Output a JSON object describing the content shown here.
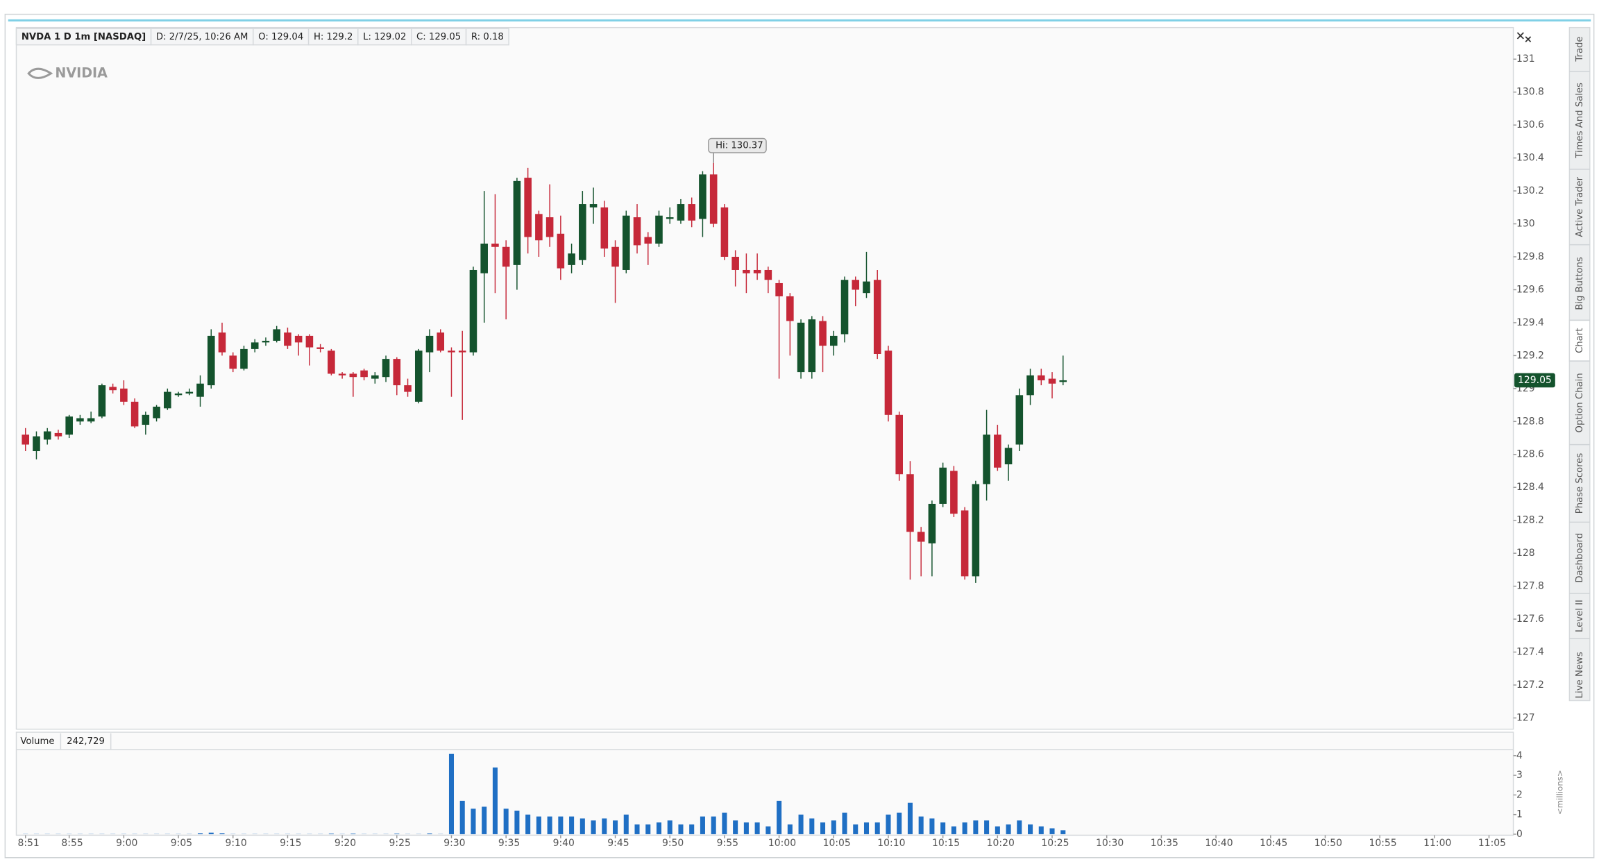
{
  "header": {
    "fields": [
      "NVDA 1 D 1m [NASDAQ]",
      "D: 2/7/25, 10:26 AM",
      "O: 129.04",
      "H: 129.2",
      "L: 129.02",
      "C: 129.05",
      "R: 0.18"
    ]
  },
  "watermark": "NVIDIA",
  "sidebar": {
    "tabs": [
      "Trade",
      "Times And Sales",
      "Active Trader",
      "Big Buttons",
      "Chart",
      "Option Chain",
      "Phase Scores",
      "Dashboard",
      "Level II",
      "Live News"
    ]
  },
  "chart_data": {
    "type": "candlestick",
    "categories": [
      "8:51",
      null,
      null,
      null,
      "8:55",
      null,
      null,
      null,
      null,
      "9:00",
      null,
      null,
      null,
      null,
      "9:05",
      null,
      null,
      null,
      null,
      "9:10",
      null,
      null,
      null,
      null,
      "9:15",
      null,
      null,
      null,
      null,
      "9:20",
      null,
      null,
      null,
      null,
      "9:25",
      null,
      null,
      null,
      null,
      "9:30",
      null,
      null,
      null,
      null,
      "9:35",
      null,
      null,
      null,
      null,
      "9:40",
      null,
      null,
      null,
      null,
      "9:45",
      null,
      null,
      null,
      null,
      "9:50",
      null,
      null,
      null,
      null,
      "9:55",
      null,
      null,
      null,
      null,
      "10:00",
      null,
      null,
      null,
      null,
      "10:05",
      null,
      null,
      null,
      null,
      "10:10",
      null,
      null,
      null,
      null,
      "10:15",
      null,
      null,
      null,
      null,
      "10:20",
      null,
      null,
      null,
      null,
      "10:25",
      null,
      null,
      null,
      null,
      "10:30",
      null,
      null,
      null,
      null,
      "10:35",
      null,
      null,
      null,
      null,
      "10:40",
      null,
      null,
      null,
      null,
      "10:45",
      null,
      null,
      null,
      null,
      "10:50",
      null,
      null,
      null,
      null,
      "10:55",
      null,
      null,
      null,
      null,
      "11:00",
      null,
      null,
      null,
      null,
      "11:05"
    ],
    "open": [
      128.72,
      128.62,
      128.69,
      128.73,
      128.72,
      128.8,
      128.8,
      128.83,
      129.01,
      129.0,
      128.92,
      128.78,
      128.82,
      128.88,
      128.96,
      128.97,
      128.95,
      129.02,
      129.34,
      129.2,
      129.12,
      129.24,
      129.28,
      129.29,
      129.34,
      129.32,
      129.32,
      129.25,
      129.23,
      129.09,
      129.09,
      129.11,
      129.06,
      129.07,
      129.18,
      129.02,
      128.92,
      129.22,
      129.34,
      129.23,
      129.23,
      129.22,
      129.7,
      129.88,
      129.86,
      129.75,
      130.28,
      130.06,
      130.04,
      129.94,
      129.75,
      129.78,
      130.1,
      130.1,
      129.86,
      129.72,
      130.04,
      129.92,
      129.88,
      130.03,
      130.02,
      130.12,
      130.03,
      130.3,
      130.1,
      129.8,
      129.72,
      129.72,
      129.72,
      129.64,
      129.56,
      129.1,
      129.1,
      129.41,
      129.26,
      129.33,
      129.66,
      129.58,
      129.66,
      129.23,
      128.84,
      128.48,
      128.13,
      128.06,
      128.3,
      128.5,
      128.26,
      127.86,
      128.42,
      128.72,
      128.54,
      128.66,
      128.96,
      129.08,
      129.06,
      129.04,
      null,
      null,
      null,
      null,
      null,
      null,
      null,
      null,
      null,
      null,
      null,
      null,
      null,
      null,
      null,
      null,
      null,
      null,
      null,
      null,
      null,
      null,
      null,
      null,
      null,
      null,
      null,
      null,
      null,
      null,
      null,
      null,
      null,
      null,
      null,
      null,
      null,
      null,
      null
    ],
    "high": [
      128.76,
      128.74,
      128.76,
      128.75,
      128.84,
      128.84,
      128.86,
      129.03,
      129.03,
      129.05,
      128.94,
      128.86,
      128.9,
      129.0,
      128.98,
      129.0,
      129.08,
      129.36,
      129.4,
      129.22,
      129.26,
      129.3,
      129.31,
      129.38,
      129.37,
      129.33,
      129.33,
      129.27,
      129.24,
      129.1,
      129.1,
      129.12,
      129.1,
      129.2,
      129.19,
      129.06,
      129.24,
      129.36,
      129.36,
      129.25,
      129.35,
      129.74,
      130.2,
      130.18,
      129.9,
      130.28,
      130.34,
      130.08,
      130.24,
      130.05,
      129.88,
      130.2,
      130.22,
      130.14,
      129.9,
      130.08,
      130.12,
      129.95,
      130.08,
      130.1,
      130.15,
      130.16,
      130.32,
      130.37,
      130.12,
      129.84,
      129.82,
      129.82,
      129.74,
      129.66,
      129.58,
      129.42,
      129.44,
      129.44,
      129.35,
      129.68,
      129.68,
      129.83,
      129.72,
      129.26,
      128.86,
      128.56,
      128.16,
      128.32,
      128.55,
      128.53,
      128.28,
      128.44,
      128.87,
      128.78,
      128.66,
      129.0,
      129.12,
      129.12,
      129.1,
      129.2,
      null,
      null,
      null,
      null,
      null,
      null,
      null,
      null,
      null,
      null,
      null,
      null,
      null,
      null,
      null,
      null,
      null,
      null,
      null,
      null,
      null,
      null,
      null,
      null,
      null,
      null,
      null,
      null,
      null,
      null,
      null,
      null,
      null,
      null,
      null,
      null,
      null,
      null,
      null
    ],
    "low": [
      128.62,
      128.57,
      128.66,
      128.69,
      128.7,
      128.78,
      128.79,
      128.82,
      128.97,
      128.9,
      128.76,
      128.72,
      128.8,
      128.87,
      128.95,
      128.96,
      128.89,
      129.0,
      129.2,
      129.1,
      129.11,
      129.22,
      129.26,
      129.28,
      129.24,
      129.2,
      129.14,
      129.22,
      129.08,
      129.06,
      128.95,
      129.05,
      129.03,
      129.04,
      128.96,
      128.95,
      128.91,
      129.1,
      129.22,
      128.95,
      128.81,
      129.2,
      129.4,
      129.58,
      129.42,
      129.6,
      129.82,
      129.8,
      129.86,
      129.66,
      129.7,
      129.75,
      130.0,
      129.8,
      129.52,
      129.7,
      129.82,
      129.75,
      129.86,
      130.0,
      130.0,
      129.98,
      129.92,
      129.98,
      129.78,
      129.62,
      129.58,
      129.66,
      129.58,
      129.06,
      129.2,
      129.06,
      129.06,
      129.1,
      129.2,
      129.28,
      129.5,
      129.55,
      129.18,
      128.8,
      128.44,
      127.84,
      127.86,
      127.86,
      128.28,
      128.22,
      127.84,
      127.82,
      128.32,
      128.5,
      128.44,
      128.62,
      128.9,
      129.02,
      128.94,
      129.02,
      null,
      null,
      null,
      null,
      null,
      null,
      null,
      null,
      null,
      null,
      null,
      null,
      null,
      null,
      null,
      null,
      null,
      null,
      null,
      null,
      null,
      null,
      null,
      null,
      null,
      null,
      null,
      null,
      null,
      null,
      null,
      null,
      null,
      null,
      null,
      null,
      null,
      null,
      null
    ],
    "close": [
      128.66,
      128.71,
      128.74,
      128.71,
      128.83,
      128.82,
      128.82,
      129.02,
      128.99,
      128.92,
      128.77,
      128.84,
      128.89,
      128.98,
      128.97,
      128.98,
      129.03,
      129.32,
      129.22,
      129.12,
      129.24,
      129.28,
      129.29,
      129.36,
      129.26,
      129.28,
      129.25,
      129.24,
      129.09,
      129.08,
      129.07,
      129.07,
      129.08,
      129.18,
      129.02,
      128.98,
      129.23,
      129.32,
      129.23,
      129.22,
      129.22,
      129.72,
      129.88,
      129.86,
      129.74,
      130.26,
      129.92,
      129.9,
      129.92,
      129.73,
      129.82,
      130.12,
      130.12,
      129.85,
      129.74,
      130.05,
      129.87,
      129.88,
      130.05,
      130.04,
      130.12,
      130.02,
      130.3,
      130.0,
      129.8,
      129.72,
      129.7,
      129.7,
      129.66,
      129.56,
      129.41,
      129.4,
      129.42,
      129.26,
      129.32,
      129.66,
      129.6,
      129.65,
      129.21,
      128.84,
      128.48,
      128.13,
      128.07,
      128.3,
      128.52,
      128.24,
      127.86,
      128.42,
      128.72,
      128.52,
      128.64,
      128.96,
      129.08,
      129.05,
      129.03,
      129.05,
      null,
      null,
      null,
      null,
      null,
      null,
      null,
      null,
      null,
      null,
      null,
      null,
      null,
      null,
      null,
      null,
      null,
      null,
      null,
      null,
      null,
      null,
      null,
      null,
      null,
      null,
      null,
      null,
      null,
      null,
      null,
      null,
      null,
      null,
      null,
      null,
      null,
      null,
      null
    ],
    "up_color": "#14532d",
    "down_color": "#c62839",
    "ylim": [
      127,
      131
    ],
    "yticks": [
      127,
      127.2,
      127.4,
      127.6,
      127.8,
      128,
      128.2,
      128.4,
      128.6,
      128.8,
      129,
      129.2,
      129.4,
      129.6,
      129.8,
      130,
      130.2,
      130.4,
      130.6,
      130.8,
      131
    ],
    "high_annotation": "Hi: 130.37",
    "volume": {
      "name": "Volume",
      "reading": "242,729",
      "axis_label": "<millions>",
      "color": "#1f6fc4",
      "ylim": [
        0,
        4
      ],
      "yticks": [
        0,
        1,
        2,
        3,
        4
      ],
      "values": [
        0.01,
        0.01,
        0.01,
        0.01,
        0.01,
        0.01,
        0.01,
        0.01,
        0.01,
        0.01,
        0.01,
        0.01,
        0.01,
        0.01,
        0.01,
        0.01,
        0.05,
        0.08,
        0.05,
        0.01,
        0.01,
        0.01,
        0.01,
        0.01,
        0.01,
        0.01,
        0.01,
        0.01,
        0.03,
        0.01,
        0.03,
        0.01,
        0.01,
        0.01,
        0.03,
        0.01,
        0.01,
        0.04,
        0.01,
        4.1,
        1.7,
        1.3,
        1.4,
        3.4,
        1.3,
        1.2,
        1.0,
        0.9,
        0.9,
        0.9,
        0.9,
        0.8,
        0.7,
        0.8,
        0.7,
        1.0,
        0.5,
        0.5,
        0.6,
        0.7,
        0.5,
        0.5,
        0.9,
        0.9,
        1.1,
        0.7,
        0.6,
        0.6,
        0.4,
        1.7,
        0.5,
        1.0,
        0.8,
        0.6,
        0.7,
        1.1,
        0.5,
        0.6,
        0.6,
        1.0,
        1.1,
        1.6,
        0.9,
        0.8,
        0.6,
        0.4,
        0.6,
        0.7,
        0.7,
        0.4,
        0.5,
        0.7,
        0.5,
        0.4,
        0.3,
        0.2,
        null,
        null,
        null,
        null,
        null,
        null,
        null,
        null,
        null,
        null,
        null,
        null,
        null,
        null,
        null,
        null,
        null,
        null,
        null,
        null,
        null,
        null,
        null,
        null,
        null,
        null,
        null,
        null,
        null,
        null,
        null,
        null,
        null,
        null,
        null,
        null,
        null,
        null,
        null
      ]
    }
  }
}
